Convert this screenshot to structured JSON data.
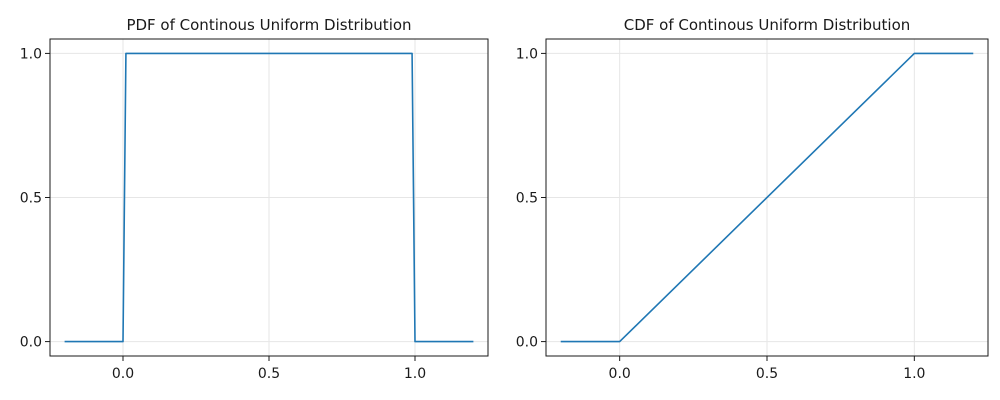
{
  "chart_data": [
    {
      "type": "line",
      "title": "PDF of Continous Uniform Distribution",
      "xlabel": "",
      "ylabel": "",
      "xlim": [
        -0.25,
        1.25
      ],
      "ylim": [
        -0.05,
        1.05
      ],
      "x_ticks": [
        0.0,
        0.5,
        1.0
      ],
      "x_tick_labels": [
        "0.0",
        "0.5",
        "1.0"
      ],
      "y_ticks": [
        0.0,
        0.5,
        1.0
      ],
      "y_tick_labels": [
        "0.0",
        "0.5",
        "1.0"
      ],
      "grid": true,
      "series": [
        {
          "color": "#1f77b4",
          "x": [
            -0.2,
            0.0,
            0.01,
            0.99,
            1.0,
            1.2
          ],
          "y": [
            0,
            0,
            1,
            1,
            0,
            0
          ]
        }
      ]
    },
    {
      "type": "line",
      "title": "CDF of Continous Uniform Distribution",
      "xlabel": "",
      "ylabel": "",
      "xlim": [
        -0.25,
        1.25
      ],
      "ylim": [
        -0.05,
        1.05
      ],
      "x_ticks": [
        0.0,
        0.5,
        1.0
      ],
      "x_tick_labels": [
        "0.0",
        "0.5",
        "1.0"
      ],
      "y_ticks": [
        0.0,
        0.5,
        1.0
      ],
      "y_tick_labels": [
        "0.0",
        "0.5",
        "1.0"
      ],
      "grid": true,
      "series": [
        {
          "color": "#1f77b4",
          "x": [
            -0.2,
            0.0,
            1.0,
            1.2
          ],
          "y": [
            0,
            0,
            1,
            1
          ]
        }
      ]
    }
  ]
}
